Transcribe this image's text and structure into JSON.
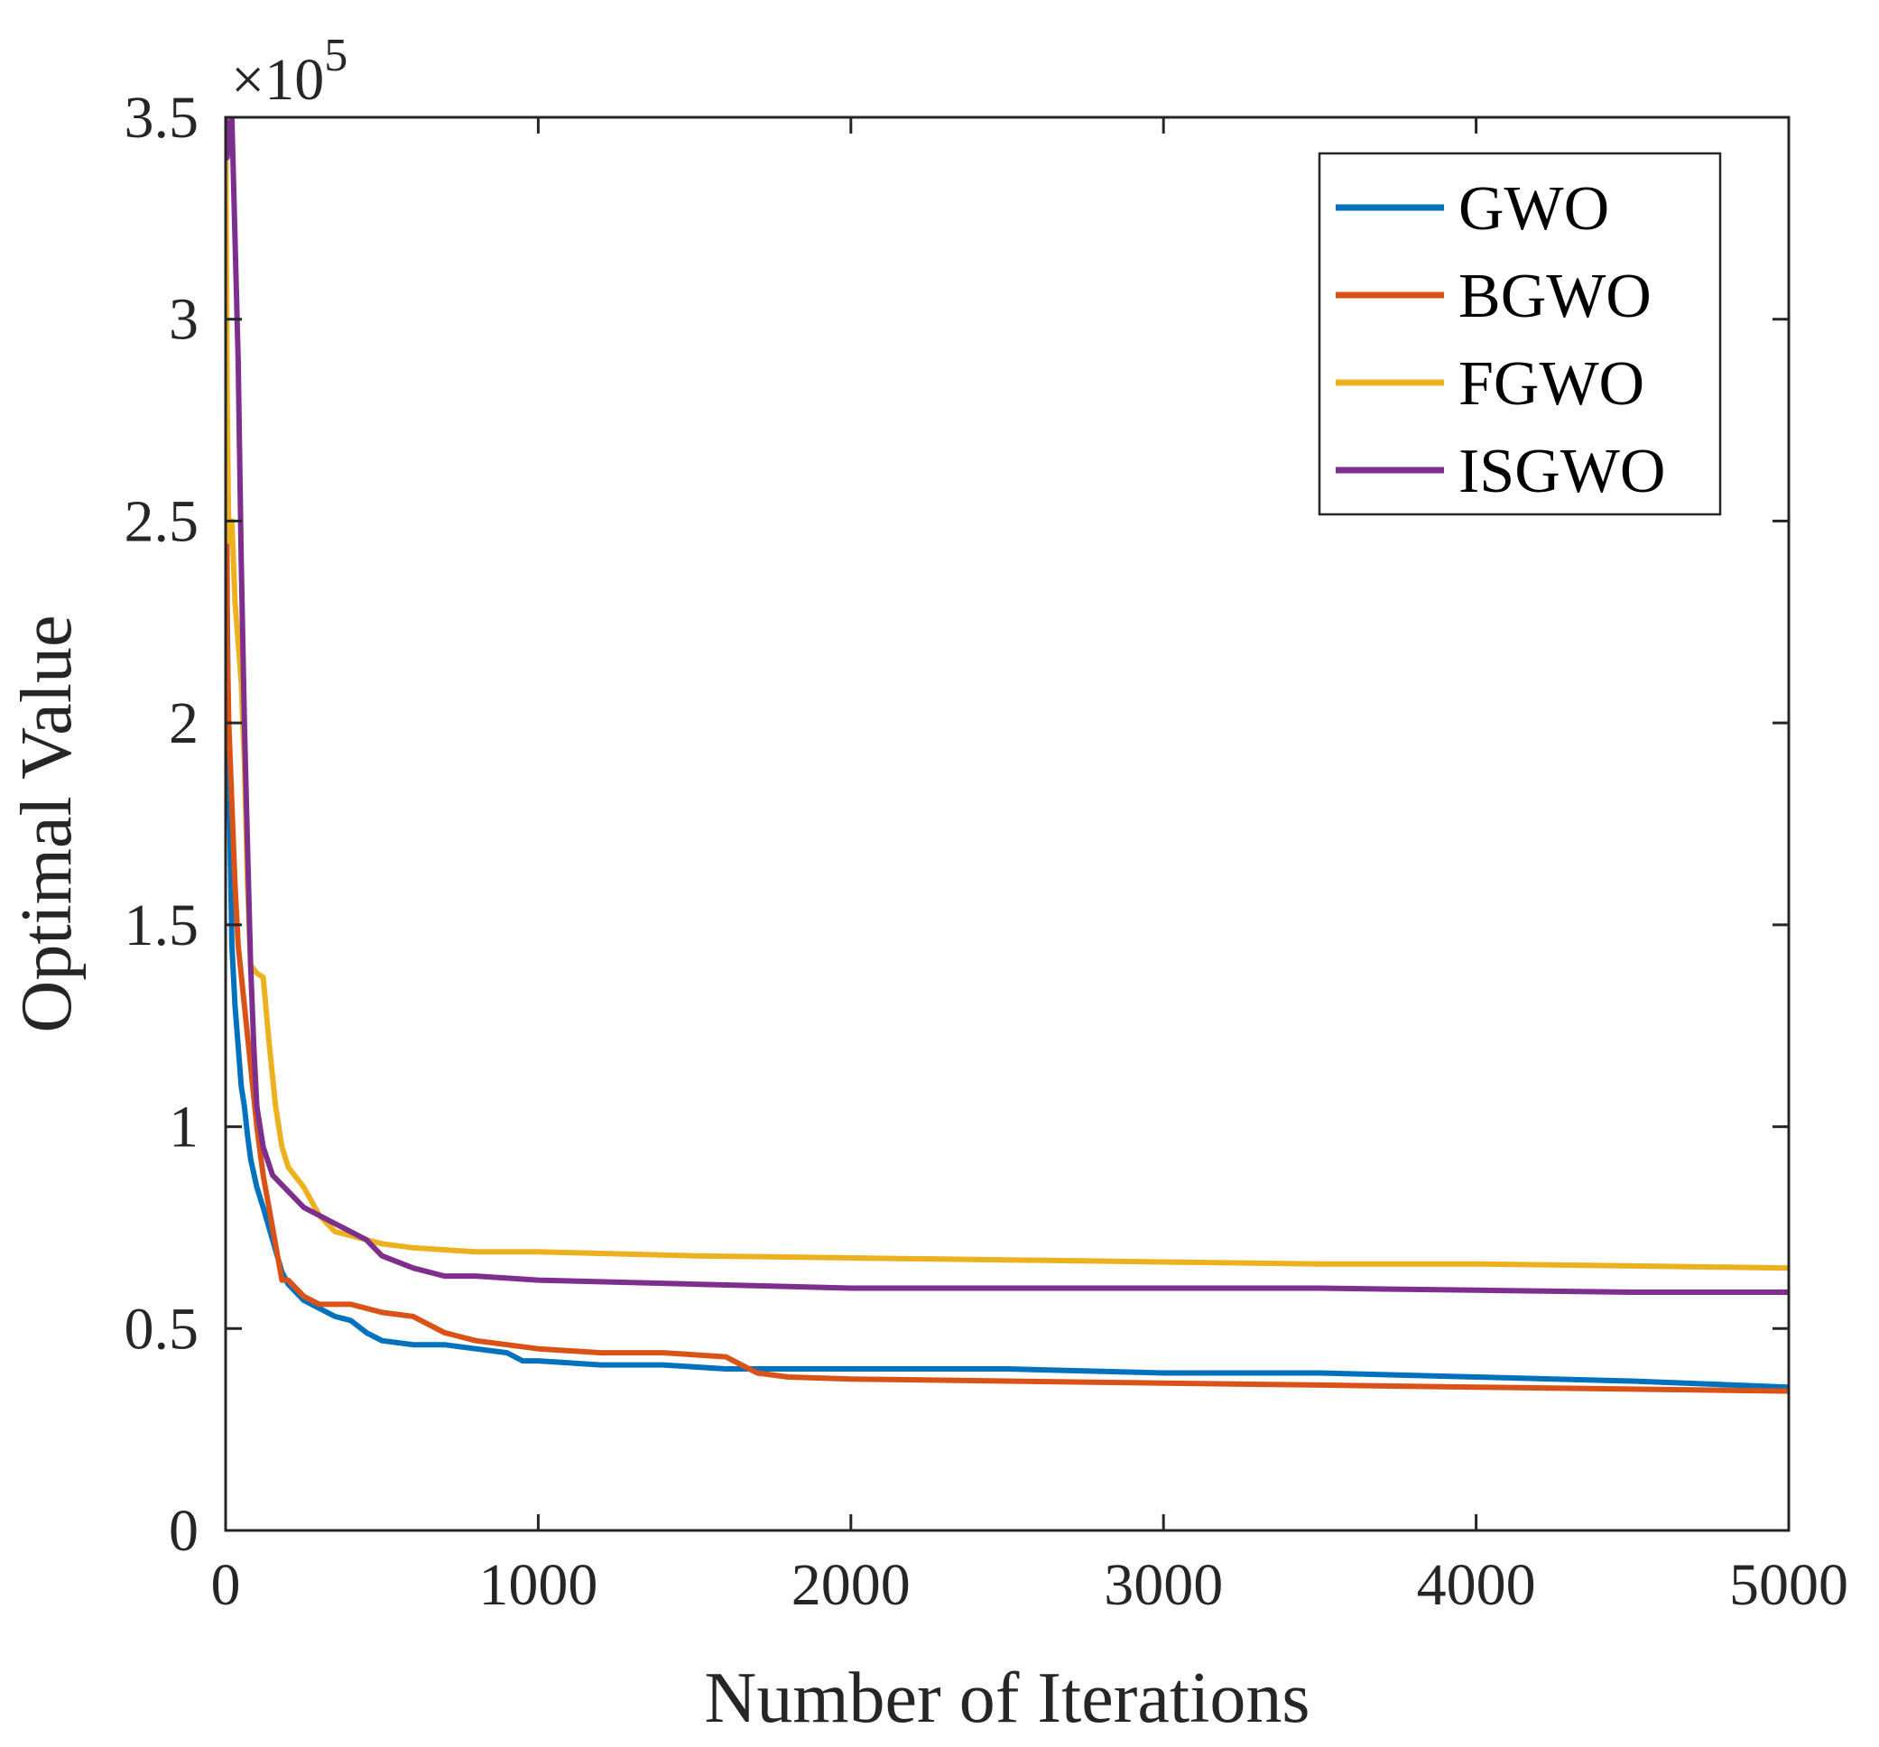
{
  "chart_data": {
    "type": "line",
    "title": "",
    "xlabel": "Number of Iterations",
    "ylabel": "Optimal Value",
    "y_multiplier_label": "×10",
    "y_multiplier_exponent": "5",
    "xlim": [
      0,
      5000
    ],
    "ylim": [
      0,
      3.5
    ],
    "x_ticks": [
      0,
      1000,
      2000,
      3000,
      4000,
      5000
    ],
    "x_tick_labels": [
      "0",
      "1000",
      "2000",
      "3000",
      "4000",
      "5000"
    ],
    "y_ticks": [
      0,
      0.5,
      1,
      1.5,
      2,
      2.5,
      3,
      3.5
    ],
    "y_tick_labels": [
      "0",
      "0.5",
      "1",
      "1.5",
      "2",
      "2.5",
      "3",
      "3.5"
    ],
    "grid": false,
    "legend_position": "top-right",
    "series": [
      {
        "name": "GWO",
        "color": "#0072BD",
        "x": [
          0,
          5,
          10,
          20,
          30,
          40,
          50,
          60,
          70,
          80,
          100,
          120,
          150,
          180,
          200,
          250,
          300,
          350,
          400,
          450,
          500,
          600,
          700,
          800,
          900,
          950,
          1000,
          1200,
          1400,
          1600,
          1800,
          2000,
          2500,
          3000,
          3500,
          4000,
          4500,
          5000
        ],
        "values": [
          3.5,
          2.3,
          1.9,
          1.45,
          1.3,
          1.2,
          1.1,
          1.05,
          0.98,
          0.92,
          0.85,
          0.8,
          0.72,
          0.64,
          0.61,
          0.57,
          0.55,
          0.53,
          0.52,
          0.49,
          0.47,
          0.46,
          0.46,
          0.45,
          0.44,
          0.42,
          0.42,
          0.41,
          0.41,
          0.4,
          0.4,
          0.4,
          0.4,
          0.39,
          0.39,
          0.38,
          0.37,
          0.355
        ]
      },
      {
        "name": "BGWO",
        "color": "#D95319",
        "x": [
          0,
          5,
          10,
          20,
          30,
          40,
          60,
          80,
          100,
          120,
          150,
          180,
          200,
          250,
          300,
          400,
          500,
          600,
          700,
          800,
          900,
          1000,
          1200,
          1400,
          1600,
          1700,
          1800,
          2000,
          2500,
          3000,
          3500,
          4000,
          4500,
          5000
        ],
        "values": [
          3.5,
          2.2,
          2.0,
          1.8,
          1.6,
          1.45,
          1.3,
          1.15,
          1.0,
          0.88,
          0.75,
          0.62,
          0.62,
          0.58,
          0.56,
          0.56,
          0.54,
          0.53,
          0.49,
          0.47,
          0.46,
          0.45,
          0.44,
          0.44,
          0.43,
          0.39,
          0.38,
          0.375,
          0.37,
          0.365,
          0.36,
          0.355,
          0.35,
          0.345
        ]
      },
      {
        "name": "FGWO",
        "color": "#EDB120",
        "x": [
          0,
          5,
          10,
          20,
          30,
          40,
          50,
          60,
          70,
          80,
          100,
          120,
          140,
          160,
          180,
          200,
          250,
          300,
          350,
          400,
          450,
          500,
          600,
          700,
          800,
          1000,
          1500,
          2000,
          2500,
          3000,
          3500,
          4000,
          4500,
          5000
        ],
        "values": [
          3.5,
          2.8,
          2.45,
          2.5,
          2.3,
          2.2,
          2.1,
          1.9,
          1.6,
          1.4,
          1.38,
          1.37,
          1.2,
          1.05,
          0.95,
          0.9,
          0.85,
          0.78,
          0.74,
          0.73,
          0.72,
          0.71,
          0.7,
          0.695,
          0.69,
          0.69,
          0.68,
          0.675,
          0.67,
          0.665,
          0.66,
          0.66,
          0.655,
          0.65
        ]
      },
      {
        "name": "ISGWO",
        "color": "#7E2F8E",
        "x": [
          0,
          5,
          10,
          20,
          30,
          40,
          50,
          60,
          70,
          80,
          90,
          100,
          120,
          150,
          200,
          250,
          300,
          350,
          400,
          450,
          500,
          600,
          700,
          800,
          1000,
          1500,
          2000,
          2500,
          3000,
          3500,
          4000,
          4500,
          5000
        ],
        "values": [
          3.5,
          3.4,
          3.45,
          3.5,
          3.2,
          2.9,
          2.4,
          2.0,
          1.7,
          1.4,
          1.2,
          1.05,
          0.95,
          0.88,
          0.84,
          0.8,
          0.78,
          0.76,
          0.74,
          0.72,
          0.68,
          0.65,
          0.63,
          0.63,
          0.62,
          0.61,
          0.6,
          0.6,
          0.6,
          0.6,
          0.595,
          0.59,
          0.59
        ]
      }
    ]
  }
}
